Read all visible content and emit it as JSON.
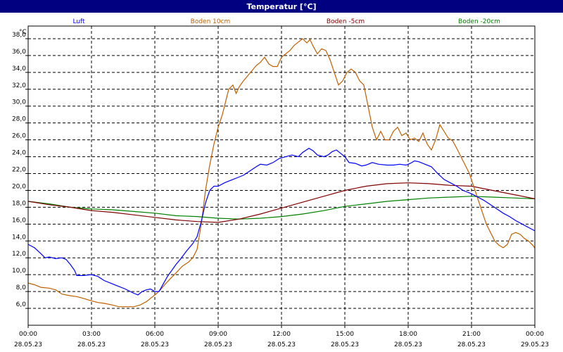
{
  "chart_data": {
    "type": "line",
    "title": "Temperatur [°C]",
    "ylabel": "°C",
    "xlabel": "",
    "ylim": [
      4.0,
      39.5
    ],
    "xlim": [
      0,
      24
    ],
    "grid": true,
    "legend_position": "top",
    "y_ticks": [
      6.0,
      8.0,
      10.0,
      12.0,
      14.0,
      16.0,
      18.0,
      20.0,
      22.0,
      24.0,
      26.0,
      28.0,
      30.0,
      32.0,
      34.0,
      36.0,
      38.0
    ],
    "y_tick_labels": [
      "6,0",
      "8,0",
      "10,0",
      "12,0",
      "14,0",
      "16,0",
      "18,0",
      "20,0",
      "22,0",
      "24,0",
      "26,0",
      "28,0",
      "30,0",
      "32,0",
      "34,0",
      "36,0",
      "38,0"
    ],
    "x_ticks": [
      {
        "x": 0,
        "time": "00:00",
        "date": "28.05.23"
      },
      {
        "x": 3,
        "time": "03:00",
        "date": "28.05.23"
      },
      {
        "x": 6,
        "time": "06:00",
        "date": "28.05.23"
      },
      {
        "x": 9,
        "time": "09:00",
        "date": "28.05.23"
      },
      {
        "x": 12,
        "time": "12:00",
        "date": "28.05.23"
      },
      {
        "x": 15,
        "time": "15:00",
        "date": "28.05.23"
      },
      {
        "x": 18,
        "time": "18:00",
        "date": "28.05.23"
      },
      {
        "x": 21,
        "time": "21:00",
        "date": "28.05.23"
      },
      {
        "x": 24,
        "time": "00:00",
        "date": "29.05.23"
      }
    ],
    "series": [
      {
        "name": "Luft",
        "color": "#0000ff",
        "points": [
          [
            0,
            13.6
          ],
          [
            0.3,
            13.2
          ],
          [
            0.6,
            12.5
          ],
          [
            0.8,
            12.0
          ],
          [
            1.0,
            12.1
          ],
          [
            1.3,
            11.9
          ],
          [
            1.6,
            12.0
          ],
          [
            1.8,
            11.8
          ],
          [
            2.0,
            11.2
          ],
          [
            2.2,
            10.5
          ],
          [
            2.3,
            9.9
          ],
          [
            2.6,
            9.9
          ],
          [
            3.0,
            10.0
          ],
          [
            3.3,
            9.8
          ],
          [
            3.6,
            9.3
          ],
          [
            4.0,
            8.9
          ],
          [
            4.3,
            8.6
          ],
          [
            4.6,
            8.3
          ],
          [
            5.0,
            7.8
          ],
          [
            5.2,
            7.6
          ],
          [
            5.4,
            8.0
          ],
          [
            5.6,
            8.2
          ],
          [
            5.8,
            8.3
          ],
          [
            6.0,
            8.0
          ],
          [
            6.2,
            8.0
          ],
          [
            6.4,
            8.9
          ],
          [
            6.6,
            9.8
          ],
          [
            6.8,
            10.5
          ],
          [
            7.0,
            11.2
          ],
          [
            7.2,
            11.8
          ],
          [
            7.5,
            12.8
          ],
          [
            7.8,
            13.7
          ],
          [
            8.0,
            14.5
          ],
          [
            8.2,
            16.3
          ],
          [
            8.4,
            18.5
          ],
          [
            8.6,
            20.0
          ],
          [
            8.8,
            20.5
          ],
          [
            9.0,
            20.5
          ],
          [
            9.3,
            20.9
          ],
          [
            9.6,
            21.2
          ],
          [
            9.9,
            21.5
          ],
          [
            10.2,
            21.8
          ],
          [
            10.5,
            22.3
          ],
          [
            10.8,
            22.8
          ],
          [
            11.0,
            23.1
          ],
          [
            11.3,
            23.0
          ],
          [
            11.6,
            23.3
          ],
          [
            11.9,
            23.8
          ],
          [
            12.2,
            24.0
          ],
          [
            12.5,
            24.2
          ],
          [
            12.8,
            24.0
          ],
          [
            13.0,
            24.5
          ],
          [
            13.3,
            25.0
          ],
          [
            13.5,
            24.7
          ],
          [
            13.7,
            24.2
          ],
          [
            14.0,
            24.0
          ],
          [
            14.2,
            24.2
          ],
          [
            14.4,
            24.6
          ],
          [
            14.6,
            24.8
          ],
          [
            14.8,
            24.4
          ],
          [
            15.0,
            24.0
          ],
          [
            15.2,
            23.3
          ],
          [
            15.5,
            23.2
          ],
          [
            15.8,
            22.9
          ],
          [
            16.0,
            23.0
          ],
          [
            16.3,
            23.3
          ],
          [
            16.6,
            23.1
          ],
          [
            17.0,
            23.0
          ],
          [
            17.3,
            23.0
          ],
          [
            17.6,
            23.1
          ],
          [
            17.9,
            23.0
          ],
          [
            18.1,
            23.2
          ],
          [
            18.3,
            23.5
          ],
          [
            18.5,
            23.4
          ],
          [
            18.8,
            23.1
          ],
          [
            19.1,
            22.8
          ],
          [
            19.4,
            22.0
          ],
          [
            19.7,
            21.3
          ],
          [
            20.0,
            20.9
          ],
          [
            20.3,
            20.5
          ],
          [
            20.6,
            20.0
          ],
          [
            21.0,
            19.6
          ],
          [
            21.3,
            19.2
          ],
          [
            21.6,
            18.8
          ],
          [
            21.9,
            18.3
          ],
          [
            22.2,
            17.8
          ],
          [
            22.5,
            17.3
          ],
          [
            22.8,
            16.9
          ],
          [
            23.1,
            16.4
          ],
          [
            23.4,
            16.0
          ],
          [
            23.7,
            15.6
          ],
          [
            24.0,
            15.2
          ]
        ]
      },
      {
        "name": "Boden 10cm",
        "color": "#c06000",
        "points": [
          [
            0,
            9.0
          ],
          [
            0.3,
            8.8
          ],
          [
            0.6,
            8.5
          ],
          [
            1.0,
            8.4
          ],
          [
            1.3,
            8.2
          ],
          [
            1.6,
            7.7
          ],
          [
            2.0,
            7.5
          ],
          [
            2.3,
            7.4
          ],
          [
            2.6,
            7.2
          ],
          [
            3.0,
            6.9
          ],
          [
            3.3,
            6.7
          ],
          [
            3.6,
            6.6
          ],
          [
            4.0,
            6.4
          ],
          [
            4.3,
            6.2
          ],
          [
            4.6,
            6.2
          ],
          [
            5.0,
            6.2
          ],
          [
            5.3,
            6.4
          ],
          [
            5.6,
            6.8
          ],
          [
            5.9,
            7.4
          ],
          [
            6.1,
            7.8
          ],
          [
            6.3,
            8.3
          ],
          [
            6.5,
            8.9
          ],
          [
            6.8,
            9.7
          ],
          [
            7.0,
            10.2
          ],
          [
            7.3,
            11.0
          ],
          [
            7.6,
            11.5
          ],
          [
            7.8,
            12.0
          ],
          [
            8.0,
            13.0
          ],
          [
            8.2,
            16.0
          ],
          [
            8.4,
            20.0
          ],
          [
            8.6,
            23.0
          ],
          [
            8.8,
            25.5
          ],
          [
            9.0,
            27.5
          ],
          [
            9.2,
            29.0
          ],
          [
            9.35,
            30.5
          ],
          [
            9.5,
            32.0
          ],
          [
            9.7,
            32.5
          ],
          [
            9.85,
            31.5
          ],
          [
            10.0,
            32.3
          ],
          [
            10.2,
            33.0
          ],
          [
            10.4,
            33.6
          ],
          [
            10.6,
            34.2
          ],
          [
            10.8,
            34.8
          ],
          [
            11.0,
            35.2
          ],
          [
            11.2,
            35.8
          ],
          [
            11.4,
            35.0
          ],
          [
            11.6,
            34.7
          ],
          [
            11.8,
            34.7
          ],
          [
            12.0,
            35.8
          ],
          [
            12.2,
            36.2
          ],
          [
            12.4,
            36.6
          ],
          [
            12.6,
            37.2
          ],
          [
            12.8,
            37.6
          ],
          [
            13.0,
            38.0
          ],
          [
            13.2,
            37.5
          ],
          [
            13.35,
            37.9
          ],
          [
            13.5,
            37.1
          ],
          [
            13.7,
            36.2
          ],
          [
            13.9,
            36.8
          ],
          [
            14.1,
            36.6
          ],
          [
            14.3,
            35.5
          ],
          [
            14.5,
            34.0
          ],
          [
            14.7,
            32.5
          ],
          [
            14.9,
            33.0
          ],
          [
            15.1,
            34.0
          ],
          [
            15.3,
            34.4
          ],
          [
            15.5,
            34.0
          ],
          [
            15.7,
            33.0
          ],
          [
            15.9,
            32.5
          ],
          [
            16.1,
            30.0
          ],
          [
            16.3,
            27.5
          ],
          [
            16.5,
            26.0
          ],
          [
            16.7,
            27.0
          ],
          [
            16.9,
            26.0
          ],
          [
            17.1,
            26.0
          ],
          [
            17.3,
            27.0
          ],
          [
            17.5,
            27.5
          ],
          [
            17.7,
            26.5
          ],
          [
            17.9,
            26.8
          ],
          [
            18.1,
            26.0
          ],
          [
            18.3,
            26.2
          ],
          [
            18.5,
            25.8
          ],
          [
            18.7,
            26.8
          ],
          [
            18.9,
            25.5
          ],
          [
            19.1,
            24.8
          ],
          [
            19.3,
            26.0
          ],
          [
            19.5,
            27.8
          ],
          [
            19.7,
            27.0
          ],
          [
            19.9,
            26.2
          ],
          [
            20.1,
            25.9
          ],
          [
            20.3,
            25.0
          ],
          [
            20.5,
            24.0
          ],
          [
            20.7,
            23.0
          ],
          [
            20.9,
            22.0
          ],
          [
            21.1,
            20.5
          ],
          [
            21.3,
            19.0
          ],
          [
            21.5,
            17.5
          ],
          [
            21.7,
            16.0
          ],
          [
            21.9,
            15.0
          ],
          [
            22.1,
            14.0
          ],
          [
            22.3,
            13.5
          ],
          [
            22.5,
            13.2
          ],
          [
            22.7,
            13.6
          ],
          [
            22.9,
            14.8
          ],
          [
            23.1,
            15.0
          ],
          [
            23.3,
            14.8
          ],
          [
            23.5,
            14.3
          ],
          [
            23.7,
            14.0
          ],
          [
            23.9,
            13.5
          ],
          [
            24.1,
            12.8
          ],
          [
            24.3,
            12.1
          ],
          [
            24.5,
            11.9
          ]
        ]
      },
      {
        "name": "Boden -5cm",
        "color": "#800000",
        "points": [
          [
            0,
            18.7
          ],
          [
            1,
            18.3
          ],
          [
            2,
            18.0
          ],
          [
            3,
            17.6
          ],
          [
            4,
            17.4
          ],
          [
            5,
            17.1
          ],
          [
            6,
            16.8
          ],
          [
            7,
            16.5
          ],
          [
            8,
            16.3
          ],
          [
            9,
            16.2
          ],
          [
            10,
            16.6
          ],
          [
            11,
            17.2
          ],
          [
            12,
            17.9
          ],
          [
            13,
            18.6
          ],
          [
            14,
            19.3
          ],
          [
            15,
            20.0
          ],
          [
            16,
            20.5
          ],
          [
            17,
            20.8
          ],
          [
            18,
            20.9
          ],
          [
            19,
            20.8
          ],
          [
            20,
            20.6
          ],
          [
            21,
            20.5
          ],
          [
            22,
            20.0
          ],
          [
            23,
            19.5
          ],
          [
            24,
            19.0
          ],
          [
            24.5,
            18.9
          ]
        ]
      },
      {
        "name": "Boden -20cm",
        "color": "#008000",
        "points": [
          [
            0,
            18.7
          ],
          [
            1,
            18.4
          ],
          [
            2,
            18.0
          ],
          [
            3,
            17.8
          ],
          [
            4,
            17.7
          ],
          [
            5,
            17.5
          ],
          [
            6,
            17.3
          ],
          [
            7,
            17.0
          ],
          [
            8,
            16.9
          ],
          [
            9,
            16.7
          ],
          [
            10,
            16.6
          ],
          [
            11,
            16.7
          ],
          [
            12,
            16.9
          ],
          [
            13,
            17.2
          ],
          [
            14,
            17.6
          ],
          [
            15,
            18.1
          ],
          [
            16,
            18.4
          ],
          [
            17,
            18.7
          ],
          [
            18,
            18.9
          ],
          [
            19,
            19.1
          ],
          [
            20,
            19.2
          ],
          [
            21,
            19.3
          ],
          [
            22,
            19.2
          ],
          [
            23,
            19.1
          ],
          [
            24,
            19.0
          ],
          [
            24.5,
            18.9
          ]
        ]
      }
    ]
  }
}
